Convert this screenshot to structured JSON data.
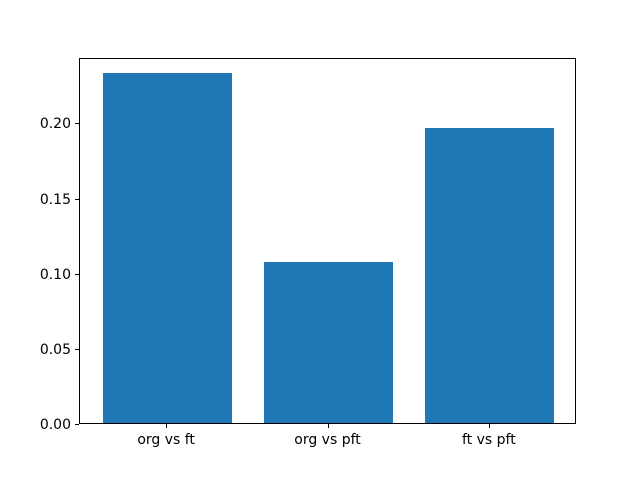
{
  "chart_data": {
    "type": "bar",
    "categories": [
      "org vs ft",
      "org vs pft",
      "ft vs pft"
    ],
    "values": [
      0.233,
      0.107,
      0.196
    ],
    "title": "",
    "xlabel": "",
    "ylabel": "",
    "ylim": [
      0,
      0.2435
    ],
    "xlim": [
      -0.54,
      2.54
    ],
    "bar_width_units": 0.8,
    "yticks": [
      0.0,
      0.05,
      0.1,
      0.15,
      0.2
    ],
    "ytick_labels": [
      "0.00",
      "0.05",
      "0.10",
      "0.15",
      "0.20"
    ],
    "bar_color": "#1f77b4",
    "axis_color": "#000000",
    "background_color": "#ffffff",
    "grid": false,
    "legend": null
  }
}
